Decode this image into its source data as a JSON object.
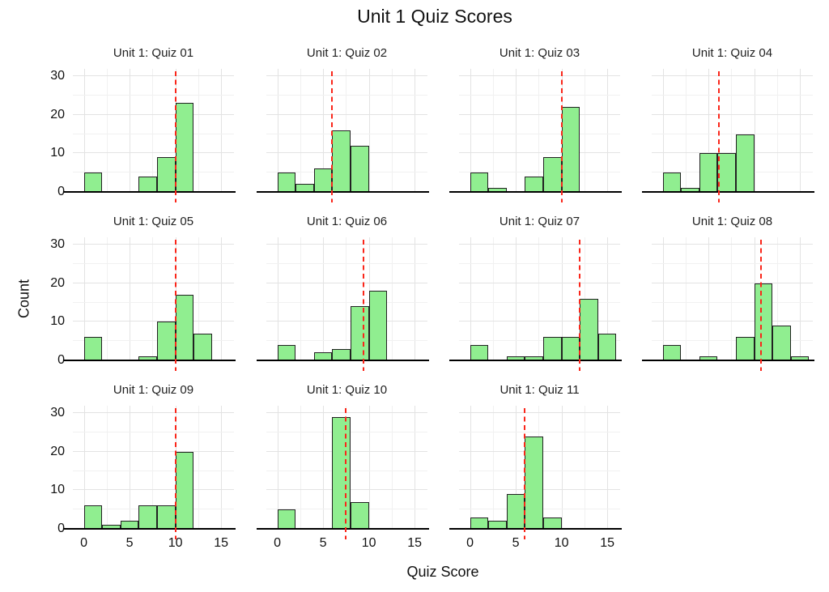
{
  "page": {
    "title": "Unit 1 Quiz Scores"
  },
  "chart_data": {
    "type": "bar",
    "subtype": "faceted-histogram",
    "title": "Unit 1 Quiz Scores",
    "xlabel": "Quiz Score",
    "ylabel": "Count",
    "x_ticks": [
      0,
      5,
      10,
      15
    ],
    "y_ticks": [
      0,
      10,
      20,
      30
    ],
    "x_minor_gridlines": [
      2.5,
      7.5,
      12.5
    ],
    "y_minor_gridlines": [
      5,
      15,
      25
    ],
    "xlim": [
      -1.2,
      16.4
    ],
    "ylim": [
      0,
      31.9
    ],
    "bin_width": 2,
    "grid": true,
    "legend": "none",
    "layout": {
      "rows": 3,
      "cols": 4
    },
    "colors": {
      "bar_fill": "#90EE90",
      "bar_edge": "#222222",
      "refline": "#FA261A",
      "grid_major": "#e3e3e3",
      "grid_minor": "#f1f1f1",
      "axis_line": "#000000",
      "text": "#1a1a1a"
    },
    "facets": [
      {
        "title": "Unit 1: Quiz 01",
        "bins": [
          [
            0,
            5
          ],
          [
            6,
            4
          ],
          [
            8,
            9
          ],
          [
            10,
            23
          ]
        ],
        "refline_x": 10
      },
      {
        "title": "Unit 1: Quiz 02",
        "bins": [
          [
            0,
            5
          ],
          [
            2,
            2
          ],
          [
            4,
            6
          ],
          [
            6,
            16
          ],
          [
            8,
            12
          ]
        ],
        "refline_x": 6
      },
      {
        "title": "Unit 1: Quiz 03",
        "bins": [
          [
            0,
            5
          ],
          [
            2,
            1
          ],
          [
            6,
            4
          ],
          [
            8,
            9
          ],
          [
            10,
            22
          ]
        ],
        "refline_x": 10
      },
      {
        "title": "Unit 1: Quiz 04",
        "bins": [
          [
            0,
            5
          ],
          [
            2,
            1
          ],
          [
            4,
            10
          ],
          [
            6,
            10
          ],
          [
            8,
            15
          ]
        ],
        "refline_x": 6.1
      },
      {
        "title": "Unit 1: Quiz 05",
        "bins": [
          [
            0,
            6
          ],
          [
            6,
            1
          ],
          [
            8,
            10
          ],
          [
            10,
            17
          ],
          [
            12,
            7
          ]
        ],
        "refline_x": 10
      },
      {
        "title": "Unit 1: Quiz 06",
        "bins": [
          [
            0,
            4
          ],
          [
            4,
            2
          ],
          [
            6,
            3
          ],
          [
            8,
            14
          ],
          [
            10,
            18
          ]
        ],
        "refline_x": 9.4
      },
      {
        "title": "Unit 1: Quiz 07",
        "bins": [
          [
            0,
            4
          ],
          [
            4,
            1
          ],
          [
            6,
            1
          ],
          [
            8,
            6
          ],
          [
            10,
            6
          ],
          [
            12,
            16
          ],
          [
            14,
            7
          ]
        ],
        "refline_x": 12
      },
      {
        "title": "Unit 1: Quiz 08",
        "bins": [
          [
            0,
            4
          ],
          [
            4,
            1
          ],
          [
            8,
            6
          ],
          [
            10,
            20
          ],
          [
            12,
            9
          ],
          [
            14,
            1
          ]
        ],
        "refline_x": 10.75
      },
      {
        "title": "Unit 1: Quiz 09",
        "bins": [
          [
            0,
            6
          ],
          [
            2,
            1
          ],
          [
            4,
            2
          ],
          [
            6,
            6
          ],
          [
            8,
            6
          ],
          [
            10,
            20
          ]
        ],
        "refline_x": 10
      },
      {
        "title": "Unit 1: Quiz 10",
        "bins": [
          [
            0,
            5
          ],
          [
            6,
            29
          ],
          [
            8,
            7
          ]
        ],
        "refline_x": 7.5
      },
      {
        "title": "Unit 1: Quiz 11",
        "bins": [
          [
            0,
            3
          ],
          [
            2,
            2
          ],
          [
            4,
            9
          ],
          [
            6,
            24
          ],
          [
            8,
            3
          ]
        ],
        "refline_x": 6
      }
    ]
  }
}
